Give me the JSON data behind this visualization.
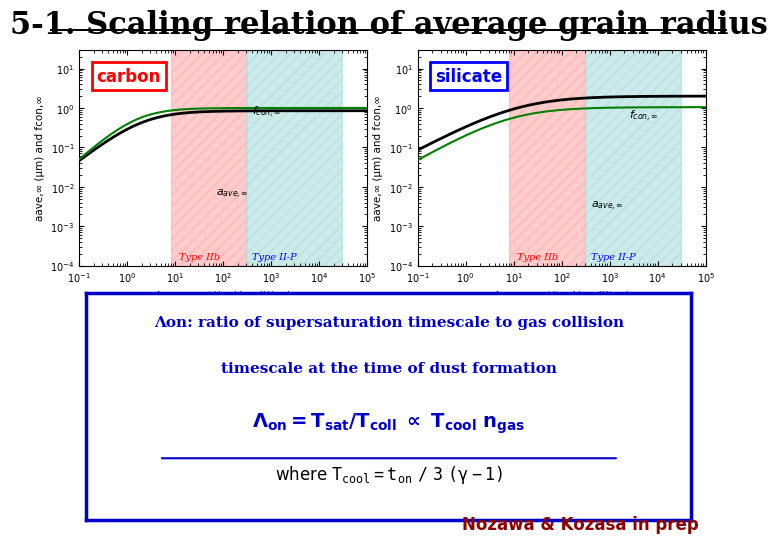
{
  "title": "5-1. Scaling relation of average grain radius",
  "title_fontsize": 22,
  "bg_color": "#ffffff",
  "carbon_label": "carbon",
  "silicate_label": "silicate",
  "xlabel_carbon": "Λon = τsat(ℓon)/τcoll(ℓon)",
  "xlabel_silicate": "Λon = τsat(ton)/τcoll(ton)",
  "ylabel": "aave,∞ (μm) and fcon,∞",
  "xmin": 0.1,
  "xmax": 100000.0,
  "ymin": 0.0001,
  "ymax": 30,
  "type_IIb_fc": "#ffaaaa",
  "type_IIb_ec": "#ffaaaa",
  "type_IIP_fc": "#aadddd",
  "type_IIP_ec": "#aadddd",
  "type_IIb_xmin": 8,
  "type_IIb_xmax": 300,
  "type_IIP_xmin": 300,
  "type_IIP_xmax": 30000.0,
  "annotation_text1": "Λon: ratio of supersaturation timescale to gas collision",
  "annotation_text2": "timescale at the time of dust formation",
  "credit": "Nozawa & Kozasa in prep"
}
